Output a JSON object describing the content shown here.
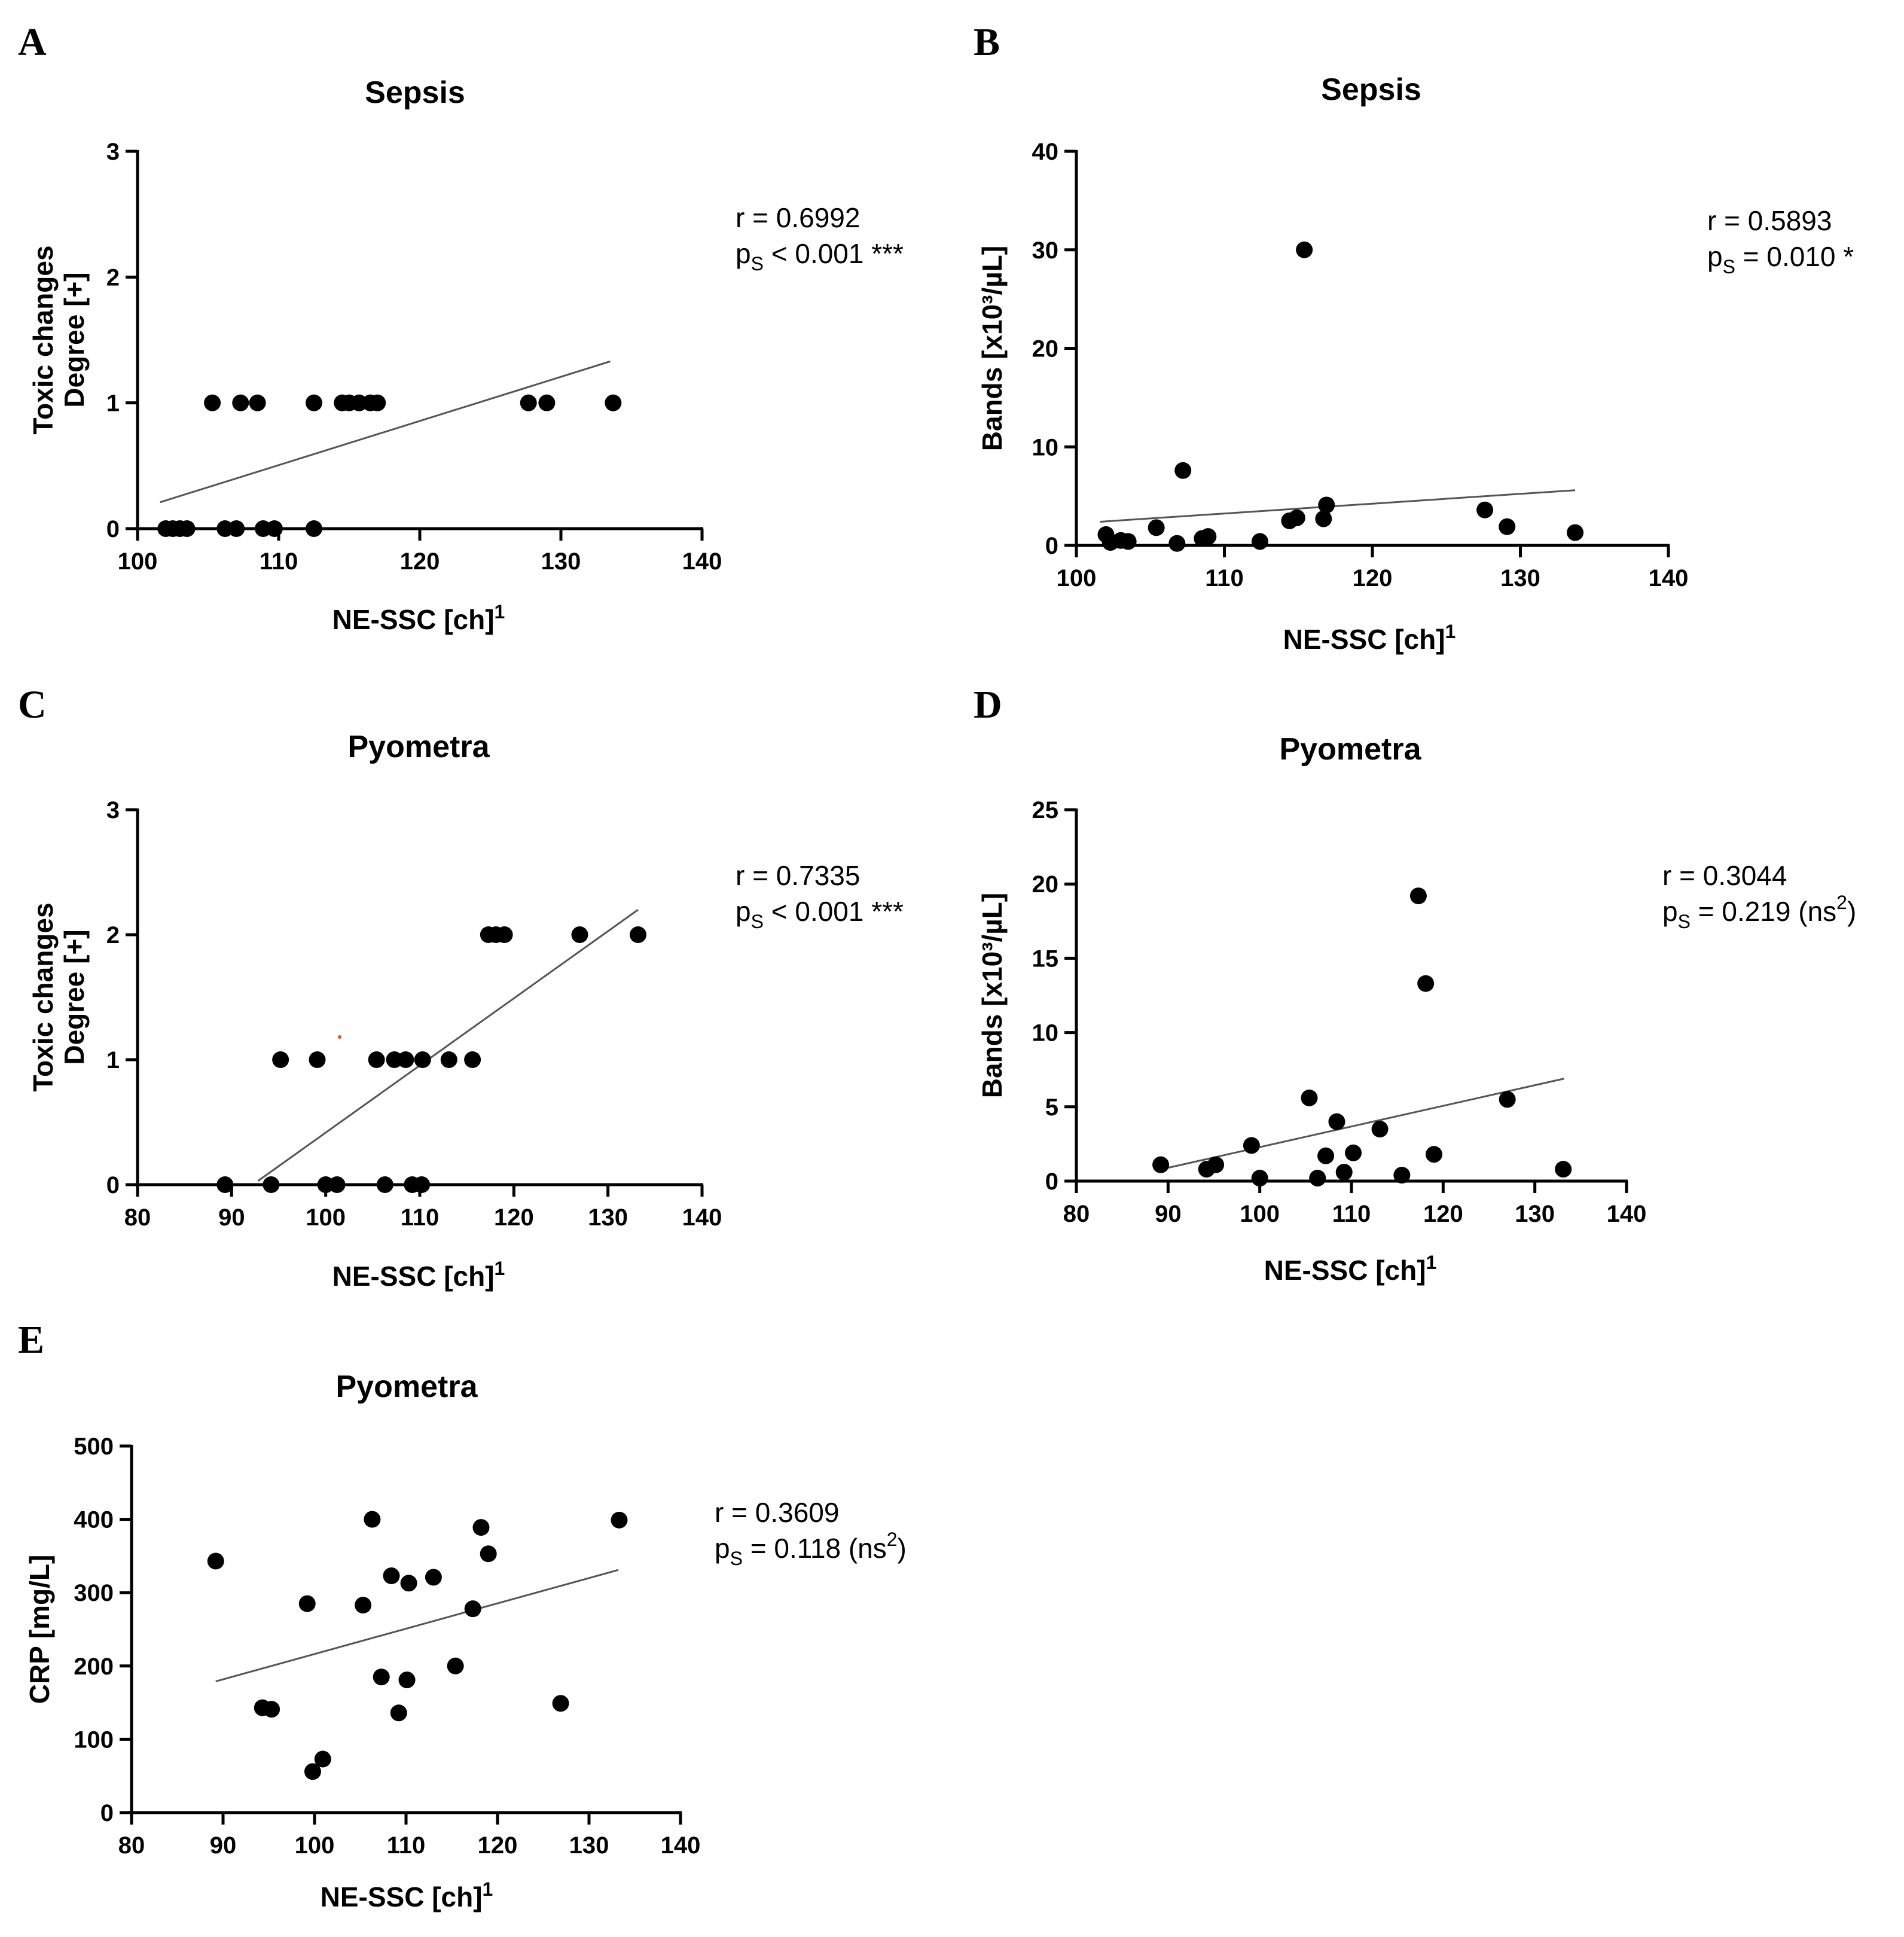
{
  "figure": {
    "background": "#ffffff",
    "point_color": "#000000",
    "line_color": "#555555",
    "stray_mark_color": "#e05020"
  },
  "chart_data": [
    {
      "panel": "A",
      "type": "scatter",
      "title": "Sepsis",
      "xlabel": "NE-SSC [ch]",
      "xlabel_sup": "1",
      "ylabel": [
        "Toxic changes",
        "Degree [+]"
      ],
      "xlim": [
        100,
        140
      ],
      "ylim": [
        0,
        3
      ],
      "xticks": [
        100,
        110,
        120,
        130,
        140
      ],
      "yticks": [
        0,
        1,
        2,
        3
      ],
      "x": [
        102,
        102.5,
        103,
        103.5,
        105.3,
        106.2,
        107,
        107.3,
        108.5,
        108.9,
        109.7,
        112.5,
        112.5,
        114.5,
        115,
        115.7,
        116.5,
        117,
        127.7,
        129,
        133.7
      ],
      "y": [
        0,
        0,
        0,
        0,
        1,
        0,
        0,
        1,
        1,
        0,
        0,
        0,
        1,
        1,
        1,
        1,
        1,
        1,
        1,
        1,
        1
      ],
      "regression": {
        "x": [
          101.6,
          133.5
        ],
        "y": [
          0.21,
          1.33
        ]
      },
      "stats": {
        "r": "r = 0.6992",
        "p_prefix": "p",
        "p_sub": "S",
        "p_value": " < 0.001 ***",
        "p_sup": "",
        "p_suffix": ""
      }
    },
    {
      "panel": "B",
      "type": "scatter",
      "title": "Sepsis",
      "xlabel": "NE-SSC [ch]",
      "xlabel_sup": "1",
      "ylabel": [
        "Bands [x10³/µL]"
      ],
      "xlim": [
        100,
        140
      ],
      "ylim": [
        0,
        40
      ],
      "xticks": [
        100,
        110,
        120,
        130,
        140
      ],
      "yticks": [
        0,
        10,
        20,
        30,
        40
      ],
      "x": [
        102,
        102.3,
        103,
        103.5,
        105.4,
        106.8,
        107.2,
        108.5,
        108.9,
        112.4,
        114.4,
        114.9,
        115.4,
        116.7,
        116.9,
        127.6,
        129.1,
        133.7
      ],
      "y": [
        1.1,
        0.3,
        0.5,
        0.4,
        1.8,
        0.2,
        7.6,
        0.7,
        0.9,
        0.4,
        2.5,
        2.8,
        30,
        2.7,
        4.1,
        3.6,
        1.9,
        1.3
      ],
      "regression": {
        "x": [
          101.6,
          133.7
        ],
        "y": [
          2.4,
          5.6
        ]
      },
      "stats": {
        "r": "r = 0.5893",
        "p_prefix": "p",
        "p_sub": "S",
        "p_value": " = 0.010 *",
        "p_sup": "",
        "p_suffix": ""
      }
    },
    {
      "panel": "C",
      "type": "scatter",
      "title": "Pyometra",
      "xlabel": "NE-SSC [ch]",
      "xlabel_sup": "1",
      "ylabel": [
        "Toxic changes",
        "Degree [+]"
      ],
      "xlim": [
        80,
        140
      ],
      "ylim": [
        0,
        3
      ],
      "xticks": [
        80,
        90,
        100,
        110,
        120,
        130,
        140
      ],
      "yticks": [
        0,
        1,
        2,
        3
      ],
      "x": [
        89.3,
        94.2,
        95.2,
        99.1,
        100,
        101.2,
        105.4,
        106.3,
        107.3,
        108.5,
        109.2,
        110.2,
        110.3,
        113.1,
        115.6,
        117.3,
        118.1,
        119,
        127,
        133.2
      ],
      "y": [
        0,
        0,
        1,
        1,
        0,
        0,
        1,
        0,
        1,
        1,
        0,
        0,
        1,
        1,
        1,
        2,
        2,
        2,
        2,
        2
      ],
      "regression": {
        "x": [
          92.8,
          133.2
        ],
        "y": [
          0.03,
          2.2
        ]
      },
      "stats": {
        "r": "r = 0.7335",
        "p_prefix": "p",
        "p_sub": "S",
        "p_value": " < 0.001 ***",
        "p_sup": "",
        "p_suffix": ""
      }
    },
    {
      "panel": "D",
      "type": "scatter",
      "title": "Pyometra",
      "xlabel": "NE-SSC [ch]",
      "xlabel_sup": "1",
      "ylabel": [
        "Bands [x10³/µL]"
      ],
      "xlim": [
        80,
        140
      ],
      "ylim": [
        0,
        25
      ],
      "xticks": [
        80,
        90,
        100,
        110,
        120,
        130,
        140
      ],
      "yticks": [
        0,
        5,
        10,
        15,
        20,
        25
      ],
      "x": [
        89.2,
        94.2,
        95.2,
        99.1,
        100,
        105.4,
        106.3,
        107.2,
        108.4,
        109.2,
        110.2,
        113.1,
        115.5,
        117.3,
        118.1,
        119,
        127,
        133.1
      ],
      "y": [
        1.1,
        0.8,
        1.1,
        2.4,
        0.2,
        5.6,
        0.2,
        1.7,
        4,
        0.6,
        1.9,
        3.5,
        0.4,
        19.2,
        13.3,
        1.8,
        5.5,
        0.8
      ],
      "regression": {
        "x": [
          89.3,
          133.2
        ],
        "y": [
          0.8,
          6.9
        ]
      },
      "stats": {
        "r": "r = 0.3044",
        "p_prefix": "p",
        "p_sub": "S",
        "p_value": " = 0.219 (ns",
        "p_sup": "2",
        "p_suffix": ")"
      }
    },
    {
      "panel": "E",
      "type": "scatter",
      "title": "Pyometra",
      "xlabel": "NE-SSC [ch]",
      "xlabel_sup": "1",
      "ylabel": [
        "CRP [mg/L]"
      ],
      "xlim": [
        80,
        140
      ],
      "ylim": [
        0,
        500
      ],
      "xticks": [
        80,
        90,
        100,
        110,
        120,
        130,
        140
      ],
      "yticks": [
        0,
        100,
        200,
        300,
        400,
        500
      ],
      "x": [
        89.2,
        94.3,
        95.3,
        99.2,
        99.8,
        100.9,
        105.3,
        106.3,
        107.3,
        108.4,
        109.2,
        110.1,
        110.3,
        113,
        115.4,
        117.3,
        118.2,
        119,
        126.9,
        133.3
      ],
      "y": [
        343,
        143,
        141,
        285,
        56,
        73,
        283,
        400,
        185,
        323,
        136,
        181,
        313,
        321,
        200,
        278,
        389,
        353,
        149,
        399
      ],
      "regression": {
        "x": [
          89.2,
          133.2
        ],
        "y": [
          179,
          331
        ]
      },
      "stats": {
        "r": "r = 0.3609",
        "p_prefix": "p",
        "p_sub": "S",
        "p_value": " = 0.118 (ns",
        "p_sup": "2",
        "p_suffix": ")"
      }
    }
  ]
}
